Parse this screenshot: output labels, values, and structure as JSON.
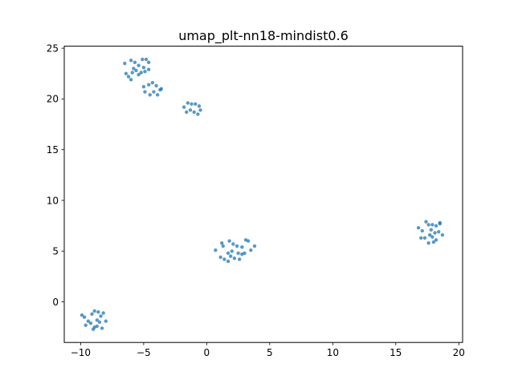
{
  "chart_data": {
    "type": "scatter",
    "title": "umap_plt-nn18-mindist0.6",
    "xlabel": "",
    "ylabel": "",
    "xlim": [
      -11.3,
      20.3
    ],
    "ylim": [
      -4.0,
      25.2
    ],
    "xticks": [
      -10,
      -5,
      0,
      5,
      10,
      15,
      20
    ],
    "yticks": [
      0,
      5,
      10,
      15,
      20,
      25
    ],
    "grid": false,
    "point_color": "#1f77b4",
    "series": [
      {
        "points": [
          [
            -6.5,
            23.5
          ],
          [
            -6.0,
            23.8
          ],
          [
            -5.7,
            23.6
          ],
          [
            -5.4,
            23.3
          ],
          [
            -5.1,
            23.9
          ],
          [
            -4.8,
            23.9
          ],
          [
            -4.6,
            23.6
          ],
          [
            -6.4,
            22.5
          ],
          [
            -6.2,
            22.2
          ],
          [
            -6.0,
            21.9
          ],
          [
            -5.8,
            23.0
          ],
          [
            -5.6,
            22.8
          ],
          [
            -5.4,
            22.4
          ],
          [
            -5.2,
            22.6
          ],
          [
            -5.0,
            23.1
          ],
          [
            -4.9,
            22.7
          ],
          [
            -4.6,
            22.9
          ],
          [
            -5.9,
            22.6
          ],
          [
            -5.0,
            21.2
          ],
          [
            -4.6,
            21.4
          ],
          [
            -4.3,
            21.6
          ],
          [
            -4.0,
            21.3
          ],
          [
            -3.7,
            20.9
          ],
          [
            -4.9,
            20.7
          ],
          [
            -4.5,
            20.4
          ],
          [
            -4.2,
            20.7
          ],
          [
            -3.9,
            20.4
          ],
          [
            -3.6,
            21.0
          ],
          [
            -1.8,
            19.2
          ],
          [
            -1.5,
            19.6
          ],
          [
            -1.2,
            19.5
          ],
          [
            -0.9,
            19.5
          ],
          [
            -0.6,
            19.3
          ],
          [
            -1.6,
            18.7
          ],
          [
            -1.3,
            18.9
          ],
          [
            -1.0,
            18.7
          ],
          [
            -0.7,
            18.5
          ],
          [
            -0.5,
            18.9
          ],
          [
            0.7,
            5.1
          ],
          [
            1.2,
            5.8
          ],
          [
            1.3,
            5.5
          ],
          [
            1.8,
            6.0
          ],
          [
            2.1,
            5.7
          ],
          [
            2.4,
            5.5
          ],
          [
            3.1,
            6.1
          ],
          [
            3.3,
            6.0
          ],
          [
            3.8,
            5.5
          ],
          [
            1.1,
            4.4
          ],
          [
            1.4,
            4.2
          ],
          [
            1.7,
            4.8
          ],
          [
            1.9,
            4.5
          ],
          [
            2.2,
            4.3
          ],
          [
            2.5,
            4.8
          ],
          [
            2.6,
            4.2
          ],
          [
            2.8,
            5.4
          ],
          [
            3.0,
            4.8
          ],
          [
            3.5,
            5.1
          ],
          [
            1.7,
            4.0
          ],
          [
            2.0,
            5.0
          ],
          [
            2.8,
            4.7
          ],
          [
            16.8,
            7.3
          ],
          [
            17.1,
            7.0
          ],
          [
            17.4,
            7.9
          ],
          [
            17.6,
            7.6
          ],
          [
            17.9,
            7.6
          ],
          [
            18.2,
            7.5
          ],
          [
            18.5,
            7.7
          ],
          [
            18.5,
            7.8
          ],
          [
            17.3,
            6.3
          ],
          [
            17.7,
            6.6
          ],
          [
            17.9,
            6.4
          ],
          [
            18.1,
            6.8
          ],
          [
            18.4,
            6.9
          ],
          [
            18.7,
            6.6
          ],
          [
            17.6,
            5.8
          ],
          [
            18.0,
            5.9
          ],
          [
            18.2,
            6.1
          ],
          [
            17.0,
            6.3
          ],
          [
            17.8,
            7.1
          ]
        ]
      },
      {
        "points": [
          [
            -9.9,
            -1.3
          ],
          [
            -9.7,
            -1.5
          ],
          [
            -9.4,
            -1.9
          ],
          [
            -9.1,
            -1.2
          ],
          [
            -8.9,
            -0.9
          ],
          [
            -8.6,
            -1.0
          ],
          [
            -8.4,
            -1.4
          ],
          [
            -8.2,
            -1.1
          ],
          [
            -9.6,
            -2.3
          ],
          [
            -9.2,
            -2.1
          ],
          [
            -8.9,
            -2.5
          ],
          [
            -8.7,
            -1.8
          ],
          [
            -8.5,
            -2.0
          ],
          [
            -8.3,
            -2.6
          ],
          [
            -8.0,
            -1.9
          ],
          [
            -9.0,
            -2.7
          ],
          [
            -8.7,
            -2.4
          ]
        ]
      }
    ]
  }
}
